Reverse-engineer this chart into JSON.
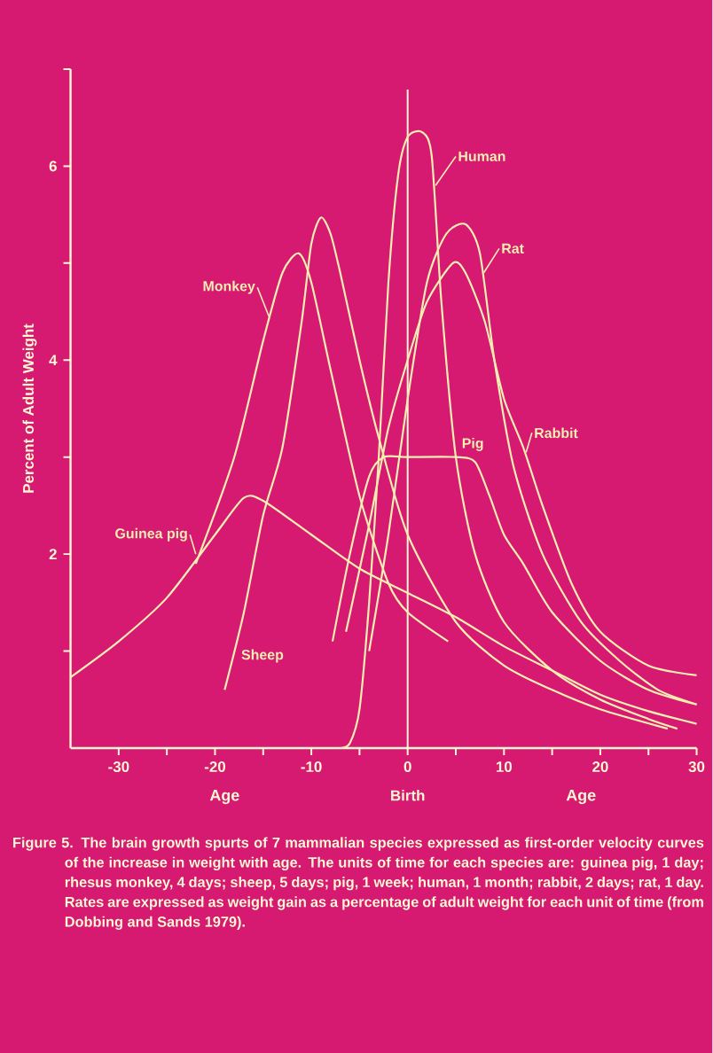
{
  "chart_data": {
    "type": "line",
    "ylabel": "Percent of Adult Weight",
    "xlabel": "Age",
    "xlim": [
      -35,
      30
    ],
    "ylim": [
      0,
      7
    ],
    "xticks": [
      -30,
      {
        "value": -25,
        "label": null
      },
      -20,
      {
        "value": -15,
        "label": null
      },
      -10,
      {
        "value": -5,
        "label": null
      },
      0,
      {
        "value": 5,
        "label": null
      },
      10,
      {
        "value": 15,
        "label": null
      },
      20,
      {
        "value": 25,
        "label": null
      },
      30
    ],
    "yticks": [
      {
        "value": 1,
        "label": null
      },
      2,
      {
        "value": 3,
        "label": null
      },
      4,
      {
        "value": 5,
        "label": null
      },
      6,
      {
        "value": 7,
        "label": null
      }
    ],
    "line_style": "solid",
    "ref_lines": [
      {
        "axis": "x",
        "value": 0,
        "label": "Birth"
      }
    ],
    "series": [
      {
        "name": "Guinea pig",
        "color": "#f6efb2",
        "x": [
          -35,
          -30,
          -25,
          -20,
          -17,
          -15,
          -10,
          -5,
          0,
          5,
          10,
          15,
          20,
          25,
          30
        ],
        "values": [
          0.73,
          1.1,
          1.55,
          2.2,
          2.58,
          2.55,
          2.2,
          1.85,
          1.6,
          1.35,
          1.05,
          0.8,
          0.55,
          0.38,
          0.25
        ]
      },
      {
        "name": "Monkey",
        "color": "#f6efb2",
        "x": [
          -22,
          -18,
          -15,
          -13,
          -11.3,
          -10,
          -8,
          -5,
          -2,
          0,
          4.2
        ],
        "values": [
          1.9,
          3.0,
          4.2,
          4.9,
          5.1,
          4.8,
          3.9,
          2.6,
          1.7,
          1.4,
          1.1
        ]
      },
      {
        "name": "Sheep",
        "color": "#f6efb2",
        "x": [
          -19,
          -17,
          -15,
          -13,
          -11,
          -10,
          -9,
          -8,
          -7,
          -5,
          -3,
          0,
          5,
          10,
          15,
          20,
          27
        ],
        "values": [
          0.6,
          1.4,
          2.4,
          3.1,
          4.4,
          5.2,
          5.47,
          5.3,
          4.9,
          4.0,
          3.2,
          2.2,
          1.3,
          0.85,
          0.6,
          0.4,
          0.2
        ]
      },
      {
        "name": "Human",
        "color": "#f6efb2",
        "x": [
          -7,
          -6,
          -5,
          -4,
          -3,
          -2,
          -1,
          0,
          1.5,
          2.5,
          3.5,
          5,
          7,
          10,
          15,
          20,
          25,
          28
        ],
        "values": [
          0,
          0.05,
          0.4,
          1.5,
          3.0,
          4.8,
          5.9,
          6.3,
          6.35,
          6.1,
          4.6,
          3.0,
          2.0,
          1.3,
          0.8,
          0.5,
          0.3,
          0.2
        ]
      },
      {
        "name": "Rat",
        "color": "#f6efb2",
        "x": [
          -4,
          -2,
          0,
          2,
          4,
          6,
          7.5,
          9,
          11,
          14,
          18,
          22,
          26,
          30
        ],
        "values": [
          1.0,
          2.2,
          3.6,
          4.8,
          5.3,
          5.4,
          5.1,
          4.0,
          2.9,
          2.0,
          1.3,
          0.9,
          0.6,
          0.45
        ]
      },
      {
        "name": "Rabbit",
        "color": "#f6efb2",
        "x": [
          -6.4,
          -4,
          -2,
          0,
          2,
          4.7,
          6,
          8,
          10,
          12,
          14,
          17,
          20,
          25,
          30
        ],
        "values": [
          1.2,
          2.3,
          3.3,
          4.0,
          4.6,
          5.0,
          4.9,
          4.4,
          3.6,
          3.1,
          2.5,
          1.7,
          1.2,
          0.85,
          0.75
        ]
      },
      {
        "name": "Pig",
        "color": "#f6efb2",
        "x": [
          -7.8,
          -6,
          -4,
          -2.5,
          0,
          5,
          7,
          8.5,
          10,
          12,
          15,
          20,
          25,
          30
        ],
        "values": [
          1.1,
          2.0,
          2.8,
          3.0,
          3.0,
          3.0,
          2.95,
          2.6,
          2.2,
          1.9,
          1.4,
          0.9,
          0.6,
          0.45
        ]
      }
    ],
    "annotations": [
      "Age",
      "Figure 5. The brain growth spurts of 7 mammalian species expressed as first-order velocity curves of the increase in weight with age. The units of time for each species are: guinea pig, 1 day; rhesus monkey, 4 days; sheep, 5 days; pig, 1 week; human, 1 month; rabbit, 2 days; rat, 1 day. Rates are expressed as weight gain as a percentage of adult weight for each unit of time (from Dobbing and Sands 1979)."
    ]
  }
}
